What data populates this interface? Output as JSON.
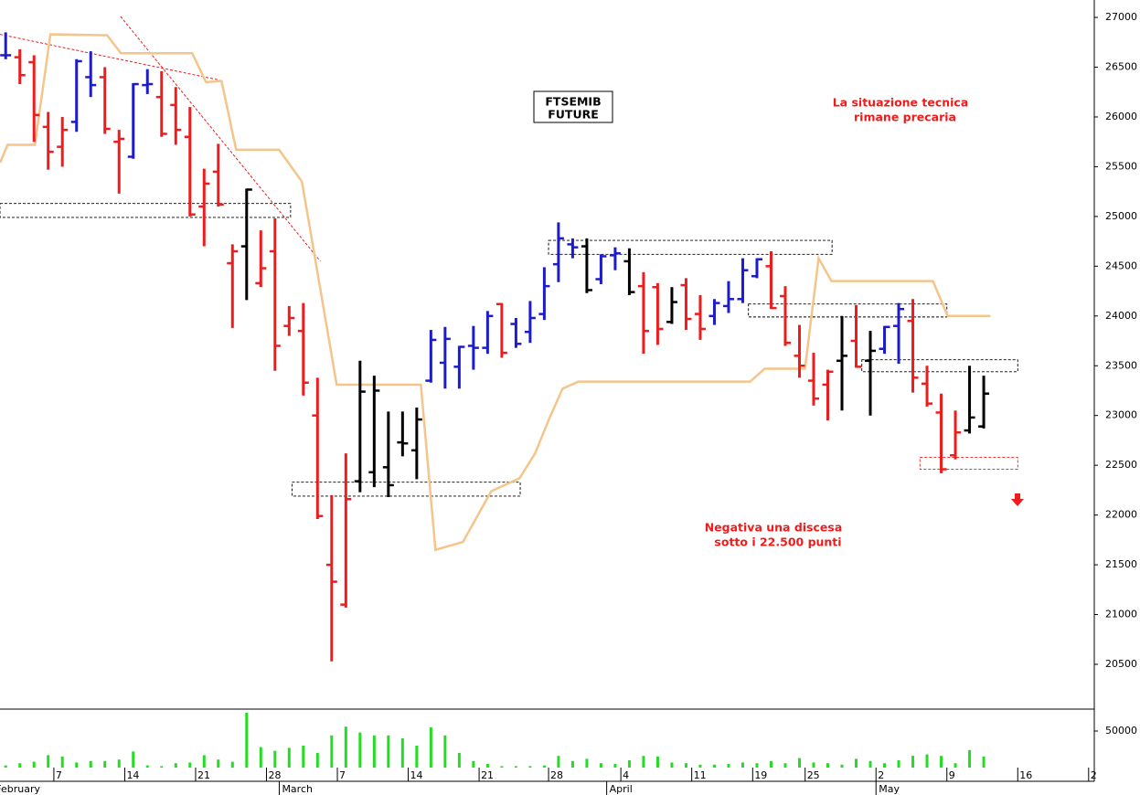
{
  "chart_data": {
    "type": "ohlc",
    "title": [
      "FTSEMIB",
      "FUTURE"
    ],
    "annotations": [
      {
        "lines": [
          "La situazione tecnica",
          "rimane precaria"
        ],
        "color": "#ee1c1c"
      },
      {
        "lines": [
          "Negativa una discesa",
          "sotto i 22.500 punti"
        ],
        "color": "#ee1c1c"
      }
    ],
    "high": [
      26850,
      26680,
      26620,
      26050,
      26000,
      26580,
      26660,
      26500,
      25870,
      26340,
      26480,
      26460,
      26300,
      26100,
      25480,
      25730,
      24720,
      25280,
      24860,
      24980,
      24100,
      24130,
      23380,
      22200,
      22620,
      23550,
      23400,
      23040,
      23040,
      23080,
      23860,
      23890,
      23700,
      23900,
      24050,
      24130,
      23980,
      24150,
      24490,
      24940,
      24780,
      24780,
      24620,
      24690,
      24680,
      24440,
      24330,
      24290,
      24380,
      24210,
      24170,
      24350,
      24580,
      24580,
      24650,
      24300,
      23910,
      23630,
      23460,
      24000,
      24110,
      23850,
      23900,
      24130,
      24170,
      23500,
      23220,
      23050,
      23500,
      23400
    ],
    "low": [
      26580,
      26330,
      25750,
      25470,
      25500,
      25850,
      26200,
      25830,
      25230,
      25580,
      26230,
      25800,
      25720,
      25000,
      24700,
      25100,
      23880,
      24160,
      24290,
      23450,
      23800,
      23200,
      21960,
      20530,
      21070,
      22230,
      22280,
      22180,
      22590,
      22360,
      23330,
      23270,
      23270,
      23460,
      23620,
      23580,
      23680,
      23730,
      23960,
      24340,
      24580,
      24230,
      24320,
      24460,
      24210,
      23620,
      23710,
      23920,
      23860,
      23760,
      23910,
      24030,
      24130,
      24380,
      24070,
      23700,
      23380,
      23100,
      22950,
      23050,
      23480,
      23000,
      23620,
      23520,
      23230,
      23090,
      22420,
      22560,
      22820,
      22870
    ],
    "open": [
      26620,
      26600,
      26550,
      25900,
      25700,
      25950,
      26400,
      26400,
      25750,
      25600,
      26320,
      26200,
      26120,
      25800,
      25100,
      25450,
      24530,
      24700,
      24330,
      24650,
      23900,
      23850,
      23000,
      21500,
      21100,
      22340,
      22430,
      22480,
      22730,
      22650,
      23350,
      23530,
      23490,
      23700,
      23680,
      24120,
      23920,
      23840,
      24020,
      24520,
      24720,
      24700,
      24370,
      24610,
      24550,
      24300,
      24290,
      23940,
      24310,
      24020,
      24000,
      24100,
      24170,
      24400,
      24500,
      24200,
      23600,
      23350,
      23310,
      23550,
      23750,
      23550,
      23670,
      23900,
      23950,
      23320,
      23030,
      22600,
      22850,
      22890
    ],
    "close": [
      26620,
      26420,
      26020,
      25650,
      25870,
      26560,
      26320,
      25880,
      25780,
      26330,
      26330,
      25830,
      25870,
      25020,
      25330,
      25120,
      24650,
      25270,
      24480,
      23700,
      23980,
      23330,
      21990,
      21330,
      22160,
      23240,
      23250,
      22300,
      22720,
      22960,
      23760,
      23770,
      23690,
      23680,
      24000,
      23630,
      23720,
      23980,
      24300,
      24780,
      24690,
      24260,
      24600,
      24630,
      24240,
      23850,
      23870,
      24140,
      23970,
      23870,
      24130,
      24170,
      24460,
      24570,
      24080,
      23730,
      23500,
      23170,
      23440,
      23600,
      23490,
      23650,
      23890,
      24070,
      23380,
      23120,
      22460,
      22830,
      22980,
      23220
    ],
    "colors": [
      "#1c1ccc",
      "#ee1c1c",
      "#ee1c1c",
      "#ee1c1c",
      "#ee1c1c",
      "#1c1ccc",
      "#1c1ccc",
      "#ee1c1c",
      "#ee1c1c",
      "#1c1ccc",
      "#1c1ccc",
      "#ee1c1c",
      "#ee1c1c",
      "#ee1c1c",
      "#ee1c1c",
      "#ee1c1c",
      "#ee1c1c",
      "#000000",
      "#ee1c1c",
      "#ee1c1c",
      "#ee1c1c",
      "#ee1c1c",
      "#ee1c1c",
      "#ee1c1c",
      "#ee1c1c",
      "#000000",
      "#000000",
      "#000000",
      "#000000",
      "#000000",
      "#1c1ccc",
      "#1c1ccc",
      "#1c1ccc",
      "#1c1ccc",
      "#1c1ccc",
      "#ee1c1c",
      "#1c1ccc",
      "#1c1ccc",
      "#1c1ccc",
      "#1c1ccc",
      "#1c1ccc",
      "#000000",
      "#1c1ccc",
      "#1c1ccc",
      "#000000",
      "#ee1c1c",
      "#ee1c1c",
      "#000000",
      "#ee1c1c",
      "#ee1c1c",
      "#1c1ccc",
      "#1c1ccc",
      "#1c1ccc",
      "#1c1ccc",
      "#ee1c1c",
      "#ee1c1c",
      "#ee1c1c",
      "#ee1c1c",
      "#ee1c1c",
      "#000000",
      "#ee1c1c",
      "#000000",
      "#1c1ccc",
      "#1c1ccc",
      "#ee1c1c",
      "#ee1c1c",
      "#ee1c1c",
      "#ee1c1c",
      "#000000",
      "#000000"
    ],
    "volume": [
      3000,
      6000,
      8000,
      17000,
      15000,
      7000,
      9000,
      9000,
      11000,
      22000,
      3000,
      2000,
      6000,
      7000,
      17000,
      11000,
      8000,
      75000,
      28000,
      23000,
      27000,
      30000,
      20000,
      44000,
      56000,
      48000,
      44000,
      44000,
      40000,
      30000,
      55000,
      44000,
      20000,
      9000,
      5000,
      2000,
      2000,
      2000,
      3000,
      16000,
      9000,
      12000,
      6000,
      5000,
      10000,
      16000,
      15000,
      7000,
      6000,
      4000,
      4000,
      5000,
      7000,
      6000,
      9000,
      6000,
      13000,
      7000,
      6000,
      4000,
      12000,
      9000,
      6000,
      10000,
      16000,
      18000,
      16000,
      6000,
      24000,
      15000
    ],
    "volume_color": "#22dd22",
    "line": {
      "color": "#f5c48a",
      "x": [
        -0.39,
        0.13,
        2.06,
        3.16,
        7.16,
        8.13,
        13.16,
        14.13,
        15.23,
        16.26,
        19.29,
        20.9,
        23.35,
        29.29,
        30.32,
        32.26,
        34.26,
        36.26,
        37.35,
        38.32,
        39.29,
        40.39,
        52.52,
        53.55,
        56.39,
        57.35,
        58.26,
        65.42,
        66.45,
        69.48
      ],
      "values": [
        25540,
        25720,
        25720,
        26830,
        26820,
        26640,
        26640,
        26350,
        26360,
        25670,
        25670,
        25350,
        23310,
        23310,
        21650,
        21730,
        22240,
        22370,
        22620,
        22960,
        23270,
        23340,
        23340,
        23470,
        23470,
        24580,
        24350,
        24350,
        24000,
        24000
      ]
    },
    "zones": [
      {
        "x": [
          -0.4,
          20.1
        ],
        "y": [
          24990,
          25130
        ],
        "color": "#000000"
      },
      {
        "x": [
          20.2,
          36.3
        ],
        "y": [
          22190,
          22330
        ],
        "color": "#000000"
      },
      {
        "x": [
          38.3,
          58.3
        ],
        "y": [
          24620,
          24760
        ],
        "color": "#000000"
      },
      {
        "x": [
          52.4,
          66.4
        ],
        "y": [
          23990,
          24120
        ],
        "color": "#000000"
      },
      {
        "x": [
          60.4,
          71.4
        ],
        "y": [
          23440,
          23560
        ],
        "color": "#000000"
      },
      {
        "x": [
          64.5,
          71.4
        ],
        "y": [
          22460,
          22580
        ],
        "color": "#ee1c1c"
      }
    ],
    "trendlines": [
      {
        "x": [
          -0.4,
          15.1
        ],
        "y": [
          26830,
          26370
        ],
        "color": "#ee1c1c"
      },
      {
        "x": [
          8.1,
          22.2
        ],
        "y": [
          27010,
          24550
        ],
        "color": "#ee1c1c"
      }
    ],
    "xlim": [
      -0.4,
      76.8
    ],
    "ylim": [
      20050,
      27175
    ],
    "yticks": [
      20500,
      21000,
      21500,
      22000,
      22500,
      23000,
      23500,
      24000,
      24500,
      25000,
      25500,
      26000,
      26500,
      27000
    ],
    "y2lim": [
      0,
      80000
    ],
    "y2ticks": [
      50000
    ],
    "xticks": [
      {
        "value": 3.4,
        "label": "7"
      },
      {
        "value": 8.4,
        "label": "14"
      },
      {
        "value": 13.4,
        "label": "21"
      },
      {
        "value": 18.4,
        "label": "28"
      },
      {
        "value": 23.4,
        "label": "7"
      },
      {
        "value": 28.4,
        "label": "14"
      },
      {
        "value": 33.4,
        "label": "21"
      },
      {
        "value": 38.3,
        "label": "28"
      },
      {
        "value": 43.4,
        "label": "4"
      },
      {
        "value": 48.4,
        "label": "11"
      },
      {
        "value": 52.7,
        "label": "19"
      },
      {
        "value": 56.4,
        "label": "25"
      },
      {
        "value": 61.4,
        "label": "2"
      },
      {
        "value": 66.4,
        "label": "9"
      },
      {
        "value": 71.4,
        "label": "16"
      },
      {
        "value": 76.4,
        "label": "2"
      }
    ],
    "months": [
      {
        "value": -0.9,
        "label": "February"
      },
      {
        "value": 19.3,
        "label": "March"
      },
      {
        "value": 42.4,
        "label": "April"
      },
      {
        "value": 61.4,
        "label": "May"
      }
    ]
  }
}
